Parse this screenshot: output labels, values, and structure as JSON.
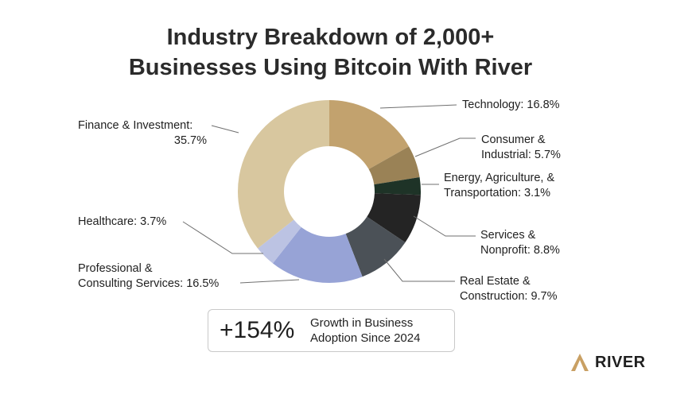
{
  "title_line1": "Industry Breakdown of 2,000+",
  "title_line2": "Businesses Using Bitcoin With River",
  "chart_data": {
    "type": "pie",
    "donut": true,
    "title": "Industry Breakdown of 2,000+ Businesses Using Bitcoin With River",
    "slices": [
      {
        "label_lines": [
          "Technology: 16.8%"
        ],
        "value": 16.8,
        "color": "#c2a26e"
      },
      {
        "label_lines": [
          "Consumer &",
          "Industrial: 5.7%"
        ],
        "value": 5.7,
        "color": "#9a8256"
      },
      {
        "label_lines": [
          "Energy, Agriculture, &",
          "Transportation: 3.1%"
        ],
        "value": 3.1,
        "color": "#1e3327"
      },
      {
        "label_lines": [
          "Services &",
          "Nonprofit: 8.8%"
        ],
        "value": 8.8,
        "color": "#242424"
      },
      {
        "label_lines": [
          "Real Estate &",
          "Construction: 9.7%"
        ],
        "value": 9.7,
        "color": "#4b5157"
      },
      {
        "label_lines": [
          "Professional &",
          "Consulting Services: 16.5%"
        ],
        "value": 16.5,
        "color": "#97a3d6"
      },
      {
        "label_lines": [
          "Healthcare: 3.7%"
        ],
        "value": 3.7,
        "color": "#bcc3e3"
      },
      {
        "label_lines": [
          "Finance & Investment:",
          "35.7%"
        ],
        "value": 35.7,
        "color": "#d8c79f"
      }
    ]
  },
  "stat": {
    "value": "+154%",
    "text_line1": "Growth in Business",
    "text_line2": "Adoption Since 2024"
  },
  "brand": {
    "name": "RIVER",
    "logo_color": "#c9a064"
  }
}
